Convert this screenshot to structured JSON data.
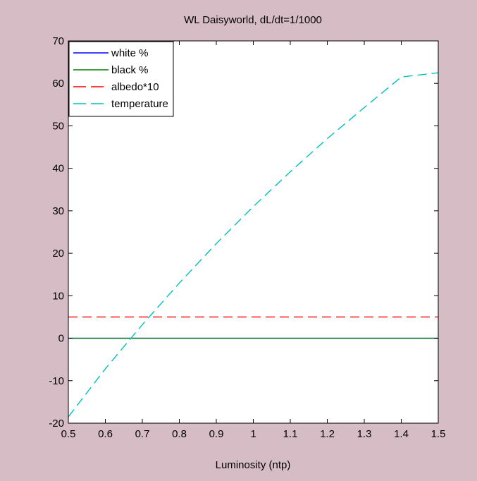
{
  "chart_data": {
    "type": "line",
    "title": "WL Daisyworld, dL/dt=1/1000",
    "xlabel": "Luminosity (ntp)",
    "ylabel": "",
    "xlim": [
      0.5,
      1.5
    ],
    "ylim": [
      -20,
      70
    ],
    "xticks": [
      "0.5",
      "0.6",
      "0.7",
      "0.8",
      "0.9",
      "1",
      "1.1",
      "1.2",
      "1.3",
      "1.4",
      "1.5"
    ],
    "yticks": [
      "-20",
      "-10",
      "0",
      "10",
      "20",
      "30",
      "40",
      "50",
      "60",
      "70"
    ],
    "grid": false,
    "legend": "top-left",
    "x": [
      0.5,
      0.6,
      0.7,
      0.8,
      0.9,
      1.0,
      1.1,
      1.2,
      1.3,
      1.4,
      1.5
    ],
    "series": [
      {
        "name": "white %",
        "color": "#0000ff",
        "dash": "solid",
        "values": [
          0,
          0,
          0,
          0,
          0,
          0,
          0,
          0,
          0,
          0,
          0
        ]
      },
      {
        "name": "black %",
        "color": "#008000",
        "dash": "solid",
        "values": [
          0,
          0,
          0,
          0,
          0,
          0,
          0,
          0,
          0,
          0,
          0
        ]
      },
      {
        "name": "albedo*10",
        "color": "#ff0000",
        "dash": "long-dash",
        "values": [
          5,
          5,
          5,
          5,
          5,
          5,
          5,
          5,
          5,
          5,
          5
        ]
      },
      {
        "name": "temperature",
        "color": "#00bfbf",
        "dash": "long-dash",
        "values": [
          -18.5,
          -7.2,
          3.2,
          13.0,
          22.3,
          31.0,
          39.2,
          47.0,
          54.3,
          61.5,
          62.5
        ]
      }
    ]
  }
}
